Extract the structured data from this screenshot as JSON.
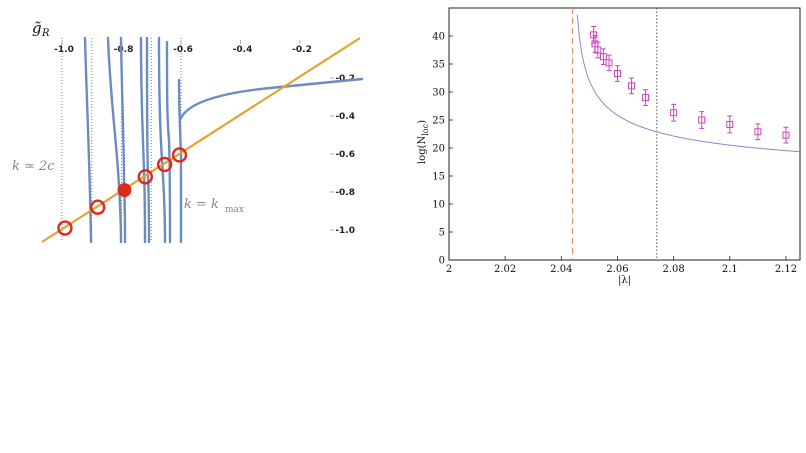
{
  "chart_data": [
    {
      "type": "line",
      "ylabel": "g̃",
      "ylabel_sub": "R",
      "x_ticks": [
        "-1.0",
        "-0.8",
        "-0.6",
        "-0.4",
        "-0.2"
      ],
      "y_ticks": [
        "-0.2",
        "-0.4",
        "-0.6",
        "-0.8",
        "-1.0"
      ],
      "xlim": [
        -1.04,
        0.0
      ],
      "ylim": [
        -1.05,
        0.02
      ],
      "annotations": [
        {
          "text": "k ≃ 2c",
          "x": -1.03,
          "y": -0.72
        },
        {
          "text": "k = k",
          "sub": "max",
          "x": -0.6,
          "y": -0.9
        }
      ],
      "vertical_lines": [
        -1.0,
        -0.9,
        -0.8,
        -0.7,
        -0.6
      ],
      "diagonal_line": {
        "slope": 1,
        "intercept": 0,
        "color": "#E6A030"
      },
      "poles": [
        -0.9,
        -0.8,
        -0.73,
        -0.66,
        -0.6
      ],
      "curve_color": "#6B8CBF",
      "circles": [
        {
          "x": -0.99,
          "y": -0.99,
          "filled": false
        },
        {
          "x": -0.88,
          "y": -0.88,
          "filled": false
        },
        {
          "x": -0.79,
          "y": -0.79,
          "filled": true
        },
        {
          "x": -0.72,
          "y": -0.72,
          "filled": false
        },
        {
          "x": -0.655,
          "y": -0.655,
          "filled": false
        },
        {
          "x": -0.605,
          "y": -0.605,
          "filled": false
        }
      ],
      "marker_color": "#DD2A1A"
    },
    {
      "type": "scatter",
      "xlabel": "|λ|",
      "ylabel": "log(N",
      "ylabel_sub": "loc",
      "ylabel_end": ")",
      "xlim": [
        2.0,
        2.125
      ],
      "ylim": [
        0,
        45
      ],
      "x_ticks": [
        "2",
        "2.02",
        "2.04",
        "2.06",
        "2.08",
        "2.1",
        "2.12"
      ],
      "y_ticks": [
        "0",
        "5",
        "10",
        "15",
        "20",
        "25",
        "30",
        "35",
        "40"
      ],
      "points": {
        "x": [
          2.0515,
          2.052,
          2.053,
          2.055,
          2.057,
          2.06,
          2.065,
          2.07,
          2.08,
          2.09,
          2.1,
          2.11,
          2.12
        ],
        "y": [
          40.2,
          38.6,
          37.5,
          36.3,
          35.2,
          33.3,
          31.1,
          29.0,
          26.3,
          25.0,
          24.2,
          22.9,
          22.3
        ],
        "err": [
          1.5,
          1.5,
          1.4,
          1.4,
          1.4,
          1.4,
          1.4,
          1.4,
          1.5,
          1.5,
          1.5,
          1.4,
          1.4
        ]
      },
      "fit": {
        "a": 10.8,
        "b": 5.9,
        "x0": 2.044,
        "color": "#8A8ACC"
      },
      "marker_color": "#CC44BB",
      "vline_dashed": {
        "x": 2.044,
        "color": "#E8956A"
      },
      "vline_dotted": {
        "x": 2.074,
        "color": "#555555"
      }
    }
  ]
}
